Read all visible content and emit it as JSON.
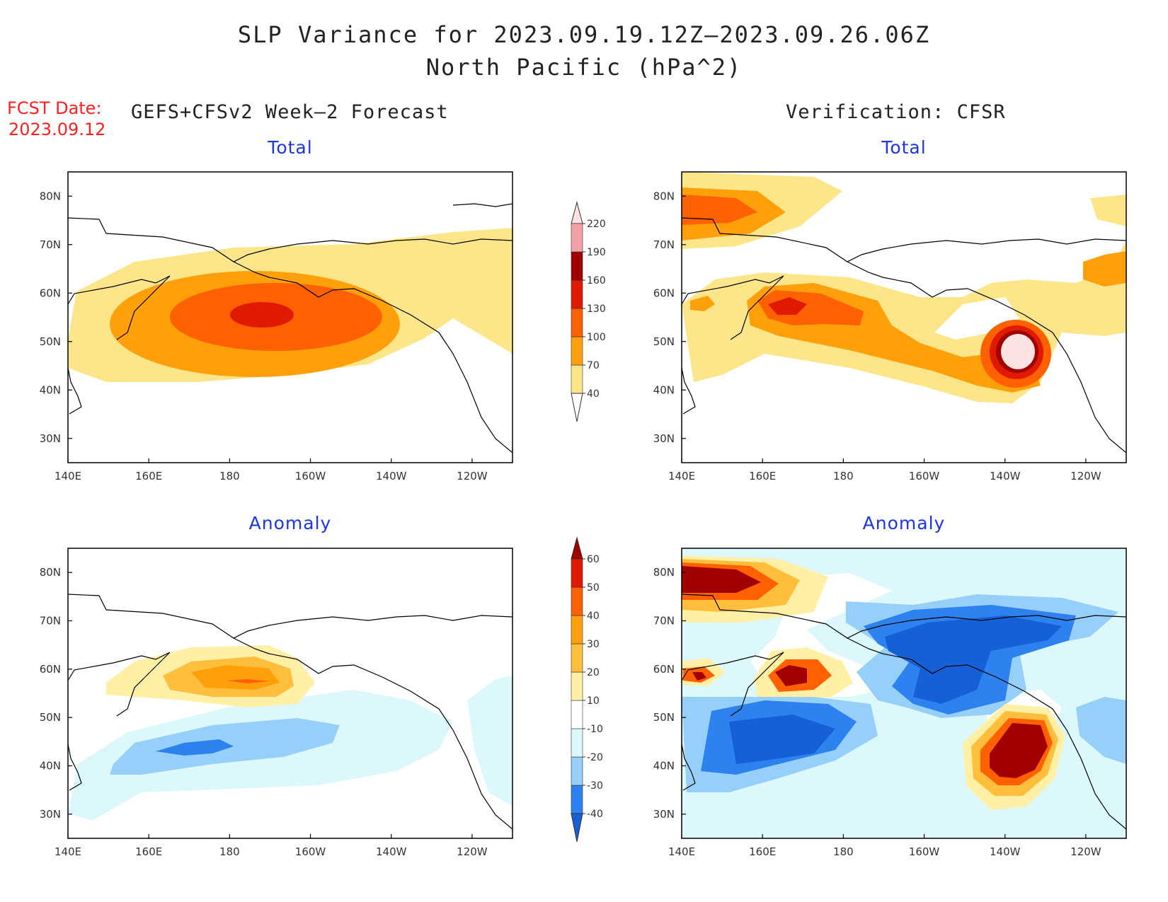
{
  "header": {
    "title_line1": "SLP Variance for 2023.09.19.12Z–2023.09.26.06Z",
    "title_line2": "North Pacific (hPa^2)",
    "fcst_label": "FCST Date:",
    "fcst_date": "2023.09.12",
    "left_column_title": "GEFS+CFSv2 Week–2 Forecast",
    "right_column_title": "Verification: CFSR"
  },
  "panels": {
    "forecast_total": {
      "title": "Total"
    },
    "verification_total": {
      "title": "Total"
    },
    "forecast_anomaly": {
      "title": "Anomaly"
    },
    "verification_anomaly": {
      "title": "Anomaly"
    }
  },
  "axes": {
    "lon_ticks": [
      "140E",
      "160E",
      "180",
      "160W",
      "140W",
      "120W"
    ],
    "lat_ticks": [
      "80N",
      "70N",
      "60N",
      "50N",
      "40N",
      "30N"
    ],
    "lon_range_deg_east": [
      140,
      250
    ],
    "lat_range_deg": [
      25,
      85
    ]
  },
  "colorbars": {
    "total": {
      "levels": [
        "40",
        "70",
        "100",
        "130",
        "160",
        "190",
        "220"
      ],
      "colors": [
        "#fde58a",
        "#ffa00a",
        "#ff6000",
        "#e01a00",
        "#a00000",
        "#f2a0a4",
        "#fde2e2"
      ]
    },
    "anomaly": {
      "levels": [
        "-40",
        "-30",
        "-20",
        "-10",
        "10",
        "20",
        "30",
        "40",
        "50",
        "60"
      ],
      "colors": [
        "#1560d6",
        "#2d82f0",
        "#96d0fa",
        "#dcf8fc",
        "#ffffff",
        "#fff0a6",
        "#ffbe3c",
        "#ffa00a",
        "#ff6000",
        "#e01a00",
        "#a00000"
      ]
    }
  }
}
